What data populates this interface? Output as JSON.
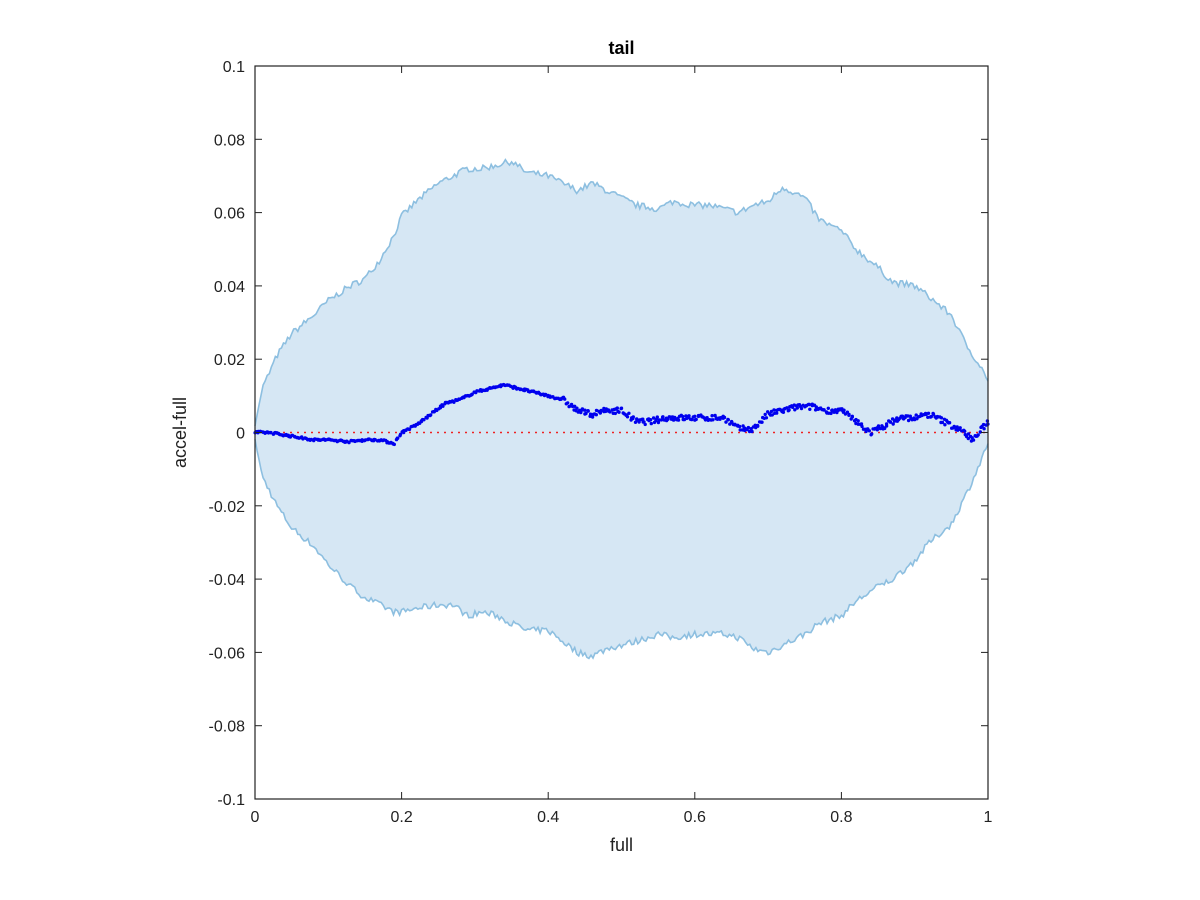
{
  "chart_data": {
    "type": "area",
    "title": "tail",
    "xlabel": "full",
    "ylabel": "accel-full",
    "xlim": [
      0,
      1
    ],
    "ylim": [
      -0.1,
      0.1
    ],
    "xticks": [
      0,
      0.2,
      0.4,
      0.6,
      0.8,
      1
    ],
    "xtick_labels": [
      "0",
      "0.2",
      "0.4",
      "0.6",
      "0.8",
      "1"
    ],
    "yticks": [
      -0.1,
      -0.08,
      -0.06,
      -0.04,
      -0.02,
      0,
      0.02,
      0.04,
      0.06,
      0.08,
      0.1
    ],
    "ytick_labels": [
      "-0.1",
      "-0.08",
      "-0.06",
      "-0.04",
      "-0.02",
      "0",
      "0.02",
      "0.04",
      "0.06",
      "0.08",
      "0.1"
    ],
    "grid": false,
    "colors": {
      "band_fill": "#d6e7f4",
      "band_edge": "#8dbfe0",
      "points": "#0000ee",
      "zero_line": "#ee2222",
      "axes": "#222222"
    },
    "envelope": {
      "x": [
        0,
        0.01,
        0.03,
        0.05,
        0.08,
        0.1,
        0.13,
        0.15,
        0.17,
        0.19,
        0.2,
        0.22,
        0.25,
        0.27,
        0.29,
        0.31,
        0.33,
        0.35,
        0.37,
        0.4,
        0.42,
        0.44,
        0.46,
        0.48,
        0.5,
        0.52,
        0.55,
        0.57,
        0.6,
        0.62,
        0.64,
        0.66,
        0.68,
        0.7,
        0.72,
        0.75,
        0.77,
        0.8,
        0.82,
        0.85,
        0.87,
        0.9,
        0.92,
        0.95,
        0.97,
        0.99,
        1.0
      ],
      "upper": [
        0.002,
        0.012,
        0.021,
        0.027,
        0.032,
        0.036,
        0.04,
        0.042,
        0.047,
        0.054,
        0.059,
        0.063,
        0.068,
        0.07,
        0.072,
        0.072,
        0.073,
        0.074,
        0.071,
        0.07,
        0.068,
        0.066,
        0.068,
        0.066,
        0.064,
        0.062,
        0.061,
        0.063,
        0.062,
        0.062,
        0.061,
        0.06,
        0.062,
        0.063,
        0.067,
        0.064,
        0.058,
        0.055,
        0.05,
        0.045,
        0.041,
        0.04,
        0.037,
        0.032,
        0.024,
        0.018,
        0.014
      ],
      "lower": [
        -0.002,
        -0.012,
        -0.02,
        -0.026,
        -0.031,
        -0.036,
        -0.042,
        -0.045,
        -0.047,
        -0.049,
        -0.049,
        -0.048,
        -0.047,
        -0.047,
        -0.05,
        -0.049,
        -0.05,
        -0.052,
        -0.054,
        -0.054,
        -0.057,
        -0.06,
        -0.061,
        -0.059,
        -0.058,
        -0.057,
        -0.055,
        -0.056,
        -0.055,
        -0.055,
        -0.055,
        -0.056,
        -0.059,
        -0.06,
        -0.058,
        -0.055,
        -0.052,
        -0.05,
        -0.046,
        -0.042,
        -0.04,
        -0.035,
        -0.03,
        -0.025,
        -0.017,
        -0.008,
        -0.003
      ]
    },
    "points_trend": {
      "x": [
        0,
        0.02,
        0.05,
        0.08,
        0.1,
        0.13,
        0.15,
        0.17,
        0.19,
        0.2,
        0.22,
        0.24,
        0.26,
        0.28,
        0.3,
        0.32,
        0.34,
        0.36,
        0.38,
        0.4,
        0.42,
        0.44,
        0.46,
        0.48,
        0.5,
        0.52,
        0.54,
        0.56,
        0.58,
        0.6,
        0.62,
        0.64,
        0.66,
        0.68,
        0.7,
        0.72,
        0.74,
        0.76,
        0.78,
        0.8,
        0.82,
        0.84,
        0.86,
        0.88,
        0.9,
        0.92,
        0.94,
        0.96,
        0.98,
        1.0
      ],
      "y": [
        0,
        0.0,
        -0.001,
        -0.002,
        -0.002,
        -0.0025,
        -0.002,
        -0.002,
        -0.003,
        0.0,
        0.002,
        0.005,
        0.008,
        0.009,
        0.011,
        0.012,
        0.013,
        0.012,
        0.011,
        0.01,
        0.009,
        0.006,
        0.005,
        0.006,
        0.006,
        0.003,
        0.003,
        0.004,
        0.004,
        0.004,
        0.004,
        0.004,
        0.001,
        0.001,
        0.005,
        0.006,
        0.007,
        0.007,
        0.006,
        0.006,
        0.003,
        0.0,
        0.002,
        0.004,
        0.004,
        0.005,
        0.003,
        0.001,
        -0.002,
        0.003
      ]
    },
    "zero_line": {
      "y": 0,
      "style": "dotted"
    }
  }
}
